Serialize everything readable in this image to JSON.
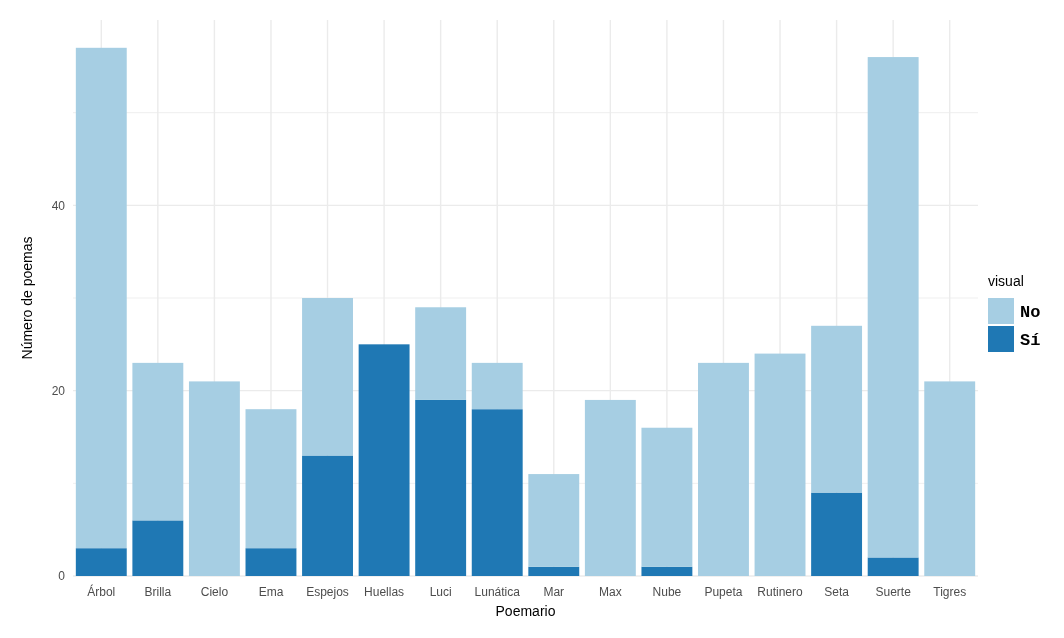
{
  "chart_data": {
    "type": "bar",
    "stacked": true,
    "xlabel": "Poemario",
    "ylabel": "Número de poemas",
    "legend_title": "visual",
    "legend": "right",
    "grid": true,
    "categories": [
      "Árbol",
      "Brilla",
      "Cielo",
      "Ema",
      "Espejos",
      "Huellas",
      "Luci",
      "Lunática",
      "Mar",
      "Max",
      "Nube",
      "Pupeta",
      "Rutinero",
      "Seta",
      "Suerte",
      "Tigres"
    ],
    "series": [
      {
        "name": "Sí",
        "color": "#1f78b4",
        "values": [
          3,
          6,
          0,
          3,
          13,
          25,
          19,
          18,
          1,
          0,
          1,
          0,
          0,
          9,
          2,
          0
        ]
      },
      {
        "name": "No",
        "color": "#a6cee3",
        "values": [
          54,
          17,
          21,
          15,
          17,
          0,
          10,
          5,
          10,
          19,
          15,
          23,
          24,
          18,
          54,
          21
        ]
      }
    ],
    "ylim": [
      0,
      60
    ],
    "yticks": [
      0,
      {
        "value": 10,
        "label": null
      },
      20,
      {
        "value": 30,
        "label": null
      },
      40,
      {
        "value": 50,
        "label": null
      }
    ]
  }
}
